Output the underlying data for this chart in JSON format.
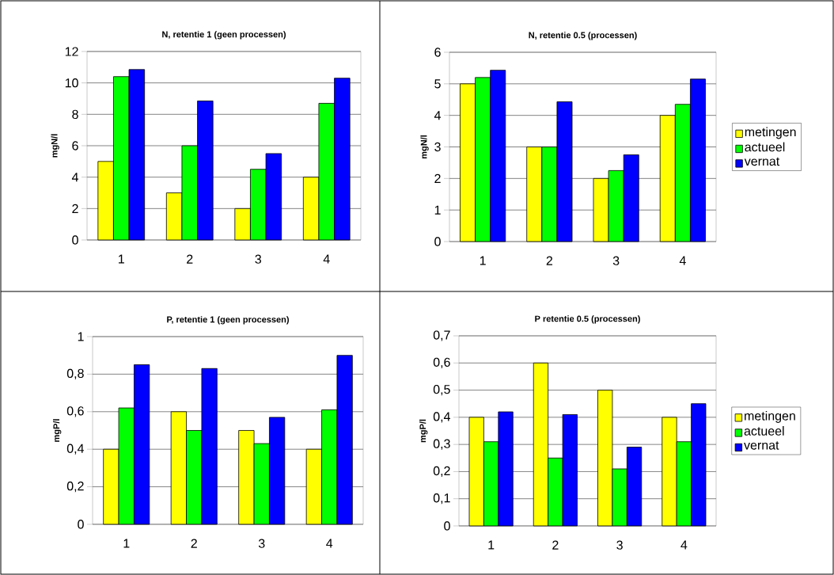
{
  "chart_data": [
    {
      "type": "bar",
      "title": "N, retentie 1 (geen processen)",
      "ylabel": "mgN/l",
      "categories": [
        "1",
        "2",
        "3",
        "4"
      ],
      "series": [
        {
          "color": "#ffff00",
          "values": [
            5,
            3,
            2,
            4
          ]
        },
        {
          "color": "#00ff00",
          "values": [
            10.4,
            6,
            4.5,
            8.7
          ]
        },
        {
          "color": "#0000ff",
          "values": [
            10.85,
            8.85,
            5.5,
            10.3
          ]
        }
      ],
      "ylim": [
        0,
        12
      ],
      "yticks": [
        0,
        2,
        4,
        6,
        8,
        10,
        12
      ],
      "grid": "y",
      "legend": false
    },
    {
      "type": "bar",
      "title": "N, retentie 0.5 (processen)",
      "ylabel": "mgN/l",
      "categories": [
        "1",
        "2",
        "3",
        "4"
      ],
      "series": [
        {
          "name": "metingen",
          "color": "#ffff00",
          "values": [
            5,
            3,
            2,
            4
          ]
        },
        {
          "name": "actueel",
          "color": "#00ff00",
          "values": [
            5.2,
            3,
            2.25,
            4.35
          ]
        },
        {
          "name": "vernat",
          "color": "#0000ff",
          "values": [
            5.43,
            4.43,
            2.75,
            5.15
          ]
        }
      ],
      "ylim": [
        0,
        6
      ],
      "yticks": [
        0,
        1,
        2,
        3,
        4,
        5,
        6
      ],
      "grid": "y",
      "legend": "right"
    },
    {
      "type": "bar",
      "title": "P, retentie 1 (geen processen)",
      "ylabel": "mgP/l",
      "categories": [
        "1",
        "2",
        "3",
        "4"
      ],
      "series": [
        {
          "color": "#ffff00",
          "values": [
            0.4,
            0.6,
            0.5,
            0.4
          ]
        },
        {
          "color": "#00ff00",
          "values": [
            0.62,
            0.5,
            0.43,
            0.61
          ]
        },
        {
          "color": "#0000ff",
          "values": [
            0.85,
            0.83,
            0.57,
            0.9
          ]
        }
      ],
      "ylim": [
        0,
        1
      ],
      "yticks": [
        0,
        {
          "value": 0.2,
          "label": "0,2"
        },
        {
          "value": 0.4,
          "label": "0,4"
        },
        {
          "value": 0.6,
          "label": "0,6"
        },
        {
          "value": 0.8,
          "label": "0,8"
        },
        1
      ],
      "grid": "y",
      "legend": false
    },
    {
      "type": "bar",
      "title": "P retentie 0.5 (processen)",
      "ylabel": "mgP/l",
      "categories": [
        "1",
        "2",
        "3",
        "4"
      ],
      "series": [
        {
          "name": "metingen",
          "color": "#ffff00",
          "values": [
            0.4,
            0.6,
            0.5,
            0.4
          ]
        },
        {
          "name": "actueel",
          "color": "#00ff00",
          "values": [
            0.31,
            0.25,
            0.21,
            0.31
          ]
        },
        {
          "name": "vernat",
          "color": "#0000ff",
          "values": [
            0.42,
            0.41,
            0.29,
            0.45
          ]
        }
      ],
      "ylim": [
        0,
        0.7
      ],
      "yticks": [
        0,
        {
          "value": 0.1,
          "label": "0,1"
        },
        {
          "value": 0.2,
          "label": "0,2"
        },
        {
          "value": 0.3,
          "label": "0,3"
        },
        {
          "value": 0.4,
          "label": "0,4"
        },
        {
          "value": 0.5,
          "label": "0,5"
        },
        {
          "value": 0.6,
          "label": "0,6"
        },
        {
          "value": 0.7,
          "label": "0,7"
        }
      ],
      "grid": "y",
      "legend": "right"
    }
  ]
}
